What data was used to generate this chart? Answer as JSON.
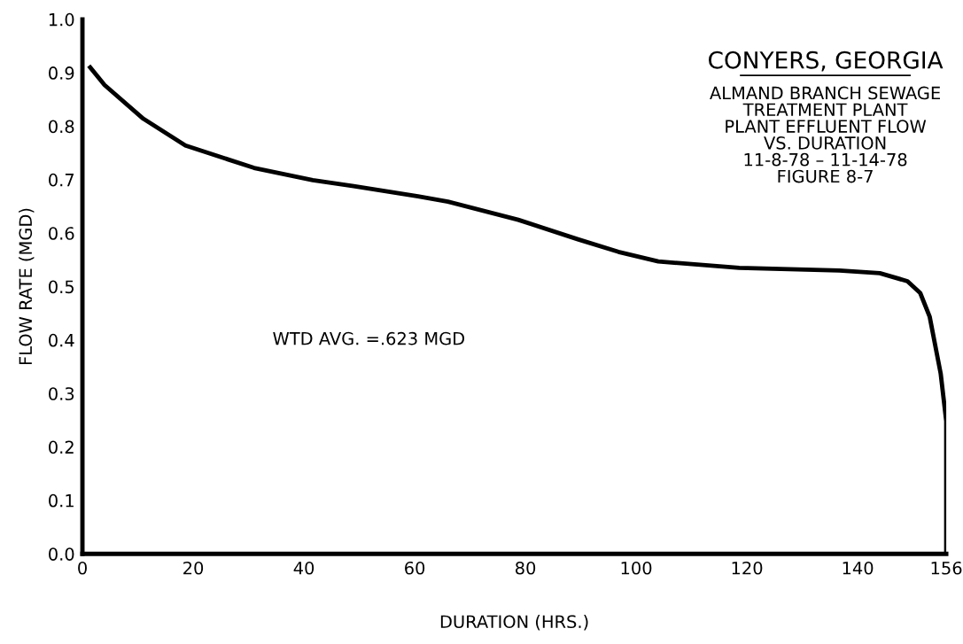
{
  "chart_data": {
    "type": "line",
    "title": "CONYERS, GEORGIA",
    "subtitle": "ALMAND BRANCH SEWAGE\nTREATMENT PLANT\nPLANT EFFLUENT FLOW\nVS. DURATION\n11-8-78 – 11-14-78\nFIGURE 8-7",
    "xlabel": "DURATION (HRS.)",
    "ylabel": "FLOW RATE (MGD)",
    "annotations": [
      "WTD AVG. =.623 MGD"
    ],
    "series": [
      {
        "color": "#000000",
        "x": [
          1.4,
          4,
          11,
          18.6,
          31,
          41.6,
          49,
          60.6,
          66,
          78.7,
          89.6,
          96.8,
          104,
          118.6,
          136.7,
          144,
          149,
          151.3,
          153,
          155,
          156,
          156
        ],
        "values": [
          0.91,
          0.877,
          0.814,
          0.764,
          0.722,
          0.699,
          0.688,
          0.669,
          0.659,
          0.625,
          0.588,
          0.565,
          0.547,
          0.535,
          0.53,
          0.525,
          0.51,
          0.488,
          0.444,
          0.337,
          0.248,
          0.0
        ]
      }
    ],
    "xlim": [
      0,
      156
    ],
    "xticks": [
      0,
      20,
      40,
      60,
      80,
      100,
      120,
      140,
      156
    ],
    "ylim": [
      0,
      1
    ],
    "yticks": [
      {
        "value": 0,
        "label": "0.0"
      },
      0.1,
      0.2,
      0.3,
      0.4,
      0.5,
      0.6,
      0.7,
      0.8,
      0.9,
      {
        "value": 1,
        "label": "1.0"
      }
    ],
    "grid": false,
    "legend": false,
    "marker": "none",
    "line_style": "solid"
  }
}
